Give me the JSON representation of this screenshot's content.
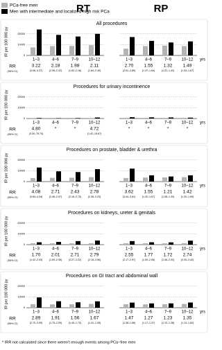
{
  "legend": [
    {
      "name": "PCa-free men",
      "color": "#b3b3b3"
    },
    {
      "name": "Men with intermediate and localized high risk PCa",
      "color": "#000000"
    }
  ],
  "columns": [
    "RT",
    "RP"
  ],
  "categories": [
    "1–3",
    "4–6",
    "7–9",
    "10–12"
  ],
  "x_unit": "yrs",
  "rr_label": "RR",
  "ci_label": "(95% CI)",
  "y_label": "IR per 100 000 py",
  "chart_data": [
    {
      "type": "bar",
      "title": "All procedures",
      "ylim": [
        0,
        25000
      ],
      "yticks": [
        0,
        10000,
        20000
      ],
      "charts": [
        {
          "series": [
            {
              "values": [
                7450,
                8700,
                8800,
                9500
              ]
            },
            {
              "values": [
                24000,
                19000,
                17500,
                20000
              ]
            }
          ],
          "rr": [
            "3.22",
            "2.18",
            "1.98",
            "2.11"
          ],
          "rr_ci": [
            "(3.08–3.37)",
            "(2.06–2.32)",
            "(1.82–2.16)",
            "(1.84–2.40)"
          ]
        },
        {
          "series": [
            {
              "values": [
                6300,
                8700,
                9100,
                8700
              ]
            },
            {
              "values": [
                17000,
                13500,
                12000,
                13000
              ]
            }
          ],
          "rr": [
            "2.70",
            "1.55",
            "1.32",
            "1.49"
          ],
          "rr_ci": [
            "(2.61–2.80)",
            "(1.47–1.64)",
            "(1.22–1.42)",
            "(1.33–1.67)"
          ]
        }
      ]
    },
    {
      "type": "bar",
      "title": "Procedures for urinary incontinence",
      "ylim": [
        0,
        25000
      ],
      "yticks": [
        0,
        10000,
        20000
      ],
      "charts": [
        {
          "series": [
            {
              "values": [
                100,
                0,
                0,
                200
              ]
            },
            {
              "values": [
                480,
                300,
                400,
                950
              ]
            }
          ],
          "rr": [
            "4.80",
            "*",
            "*",
            "4.72"
          ],
          "rr_ci": [
            "(3.30–76.74)",
            null,
            null,
            "(1.42–15.67)"
          ]
        },
        {
          "series": [
            {
              "values": [
                0,
                0,
                0,
                0
              ]
            },
            {
              "values": [
                1200,
                1100,
                1000,
                800
              ]
            }
          ],
          "rr": [
            "*",
            "*",
            "*",
            "*"
          ],
          "rr_ci": [
            null,
            null,
            null,
            null
          ]
        }
      ]
    },
    {
      "type": "bar",
      "title": "Procedures on prostate, bladder & urethra",
      "ylim": [
        0,
        25000
      ],
      "yticks": [
        0,
        10000,
        20000
      ],
      "charts": [
        {
          "series": [
            {
              "values": [
                3200,
                3500,
                3600,
                4100
              ]
            },
            {
              "values": [
                13000,
                9500,
                8800,
                11500
              ]
            }
          ],
          "rr": [
            "4.08",
            "2.71",
            "2.43",
            "2.78"
          ],
          "rr_ci": [
            "(3.84–4.34)",
            "(2.46–2.97)",
            "(2.16–2.72)",
            "(2.38–3.23)"
          ]
        },
        {
          "series": [
            {
              "values": [
                3300,
                3700,
                3900,
                4100
              ]
            },
            {
              "values": [
                12000,
                5800,
                4700,
                5800
              ]
            }
          ],
          "rr": [
            "3.62",
            "1.55",
            "1.21",
            "1.42"
          ],
          "rr_ci": [
            "(3.44–3.81)",
            "(1.42–1.67)",
            "(1.08–1.33)",
            "(1.20–1.69)"
          ]
        }
      ]
    },
    {
      "type": "bar",
      "title": "Procedures on kidneys, ureter & genitals",
      "ylim": [
        0,
        25000
      ],
      "yticks": [
        0,
        10000,
        20000
      ],
      "charts": [
        {
          "series": [
            {
              "values": [
                1300,
                1250,
                1200,
                1350
              ]
            },
            {
              "values": [
                2200,
                2500,
                3300,
                3800
              ]
            }
          ],
          "rr": [
            "1.70",
            "2.01",
            "2.71",
            "2.79"
          ],
          "rr_ci": [
            "(1.42–2.03)",
            "(1.69–2.36)",
            "(2.27–3.22)",
            "(2.18–3.56)"
          ]
        },
        {
          "series": [
            {
              "values": [
                1300,
                1250,
                1200,
                1350
              ]
            },
            {
              "values": [
                3300,
                2200,
                2100,
                3700
              ]
            }
          ],
          "rr": [
            "2.55",
            "1.77",
            "1.72",
            "2.74"
          ],
          "rr_ci": [
            "(2.17–2.97)",
            "(1.50–2.08)",
            "(1.46–2.02)",
            "(2.20–3.42)"
          ]
        }
      ]
    },
    {
      "type": "bar",
      "title": "Procedures on GI tract and abdominal wall",
      "ylim": [
        0,
        25000
      ],
      "yticks": [
        0,
        10000,
        20000
      ],
      "charts": [
        {
          "series": [
            {
              "values": [
                3300,
                3100,
                3200,
                3500
              ]
            },
            {
              "values": [
                9500,
                6000,
                5000,
                5900
              ]
            }
          ],
          "rr": [
            "2.89",
            "1.91",
            "1.56",
            "1.67"
          ],
          "rr_ci": [
            "(2.70–3.09)",
            "(1.75–2.09)",
            "(1.40–1.72)",
            "(1.41–1.95)"
          ]
        },
        {
          "series": [
            {
              "values": [
                3200,
                3100,
                3200,
                3500
              ]
            },
            {
              "values": [
                4700,
                4000,
                4000,
                4800
              ]
            }
          ],
          "rr": [
            "1.47",
            "1.27",
            "1.23",
            "1.35"
          ],
          "rr_ci": [
            "(1.38–1.56)",
            "(1.17–1.37)",
            "(1.10–1.38)",
            "(1.13–1.62)"
          ]
        }
      ]
    }
  ],
  "footnote": "* IRR not calculated since there weren't enough events among PCa−free men"
}
